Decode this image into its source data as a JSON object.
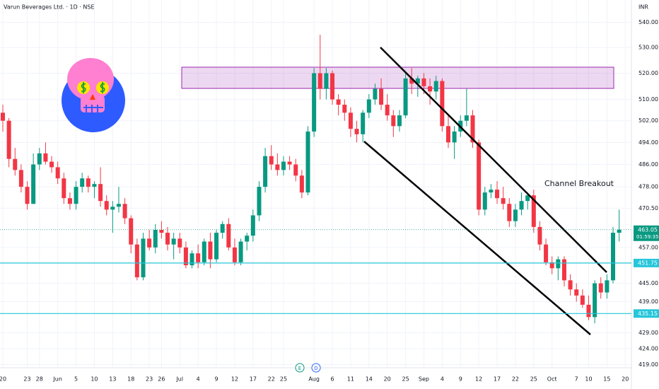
{
  "chart_data": {
    "type": "candlestick",
    "title": "Varun Beverages Ltd. · 1D · NSE",
    "currency": "INR",
    "annotation": "Channel Breakout",
    "events": [
      "E",
      "D"
    ],
    "up_color": "#089981",
    "down_color": "#f23645",
    "log_scale": true,
    "ylim": [
      418,
      549
    ],
    "yticks": [
      {
        "value": 540,
        "label": "540.00"
      },
      {
        "value": 530,
        "label": "530.00"
      },
      {
        "value": 520,
        "label": "520.00"
      },
      {
        "value": 510,
        "label": "510.00"
      },
      {
        "value": 502,
        "label": "502.00"
      },
      {
        "value": 494,
        "label": "494.00"
      },
      {
        "value": 486,
        "label": "486.00"
      },
      {
        "value": 478,
        "label": "478.00"
      },
      {
        "value": 470.5,
        "label": "470.50"
      },
      {
        "value": 457,
        "label": "457.00"
      },
      {
        "value": 445,
        "label": "445.00"
      },
      {
        "value": 439,
        "label": "439.00"
      },
      {
        "value": 429,
        "label": "429.00"
      },
      {
        "value": 424,
        "label": "424.00"
      },
      {
        "value": 419,
        "label": "419.00"
      }
    ],
    "xticks": [
      {
        "value": 0,
        "label": "20"
      },
      {
        "value": 4,
        "label": "23"
      },
      {
        "value": 6,
        "label": "28"
      },
      {
        "value": 9,
        "label": "Jun"
      },
      {
        "value": 12,
        "label": "5"
      },
      {
        "value": 15,
        "label": "10"
      },
      {
        "value": 18,
        "label": "13"
      },
      {
        "value": 21,
        "label": "18"
      },
      {
        "value": 24,
        "label": "23"
      },
      {
        "value": 26,
        "label": "26"
      },
      {
        "value": 29,
        "label": "Jul"
      },
      {
        "value": 32,
        "label": "4"
      },
      {
        "value": 35,
        "label": "9"
      },
      {
        "value": 38,
        "label": "12"
      },
      {
        "value": 41,
        "label": "17"
      },
      {
        "value": 44,
        "label": "22"
      },
      {
        "value": 46,
        "label": "25"
      },
      {
        "value": 51,
        "label": "Aug"
      },
      {
        "value": 54,
        "label": "6"
      },
      {
        "value": 57,
        "label": "11"
      },
      {
        "value": 60,
        "label": "14"
      },
      {
        "value": 63,
        "label": "20"
      },
      {
        "value": 66,
        "label": "25"
      },
      {
        "value": 69,
        "label": "Sep"
      },
      {
        "value": 72,
        "label": "4"
      },
      {
        "value": 75,
        "label": "9"
      },
      {
        "value": 78,
        "label": "12"
      },
      {
        "value": 81,
        "label": "17"
      },
      {
        "value": 84,
        "label": "22"
      },
      {
        "value": 87,
        "label": "25"
      },
      {
        "value": 90,
        "label": "Oct"
      },
      {
        "value": 94,
        "label": "7"
      },
      {
        "value": 96,
        "label": "10"
      },
      {
        "value": 99,
        "label": "15"
      },
      {
        "value": 102,
        "label": "20"
      }
    ],
    "last_price": {
      "value": 463.05,
      "label": "463.05",
      "countdown": "01:59:35"
    },
    "levels": [
      {
        "value": 451.75,
        "label": "451.75"
      },
      {
        "value": 435.15,
        "label": "435.15"
      }
    ],
    "ohlc": [
      [
        505,
        508,
        498,
        502
      ],
      [
        502,
        503,
        485,
        488
      ],
      [
        488,
        492,
        482,
        484
      ],
      [
        484,
        486,
        476,
        478
      ],
      [
        478,
        480,
        470,
        472
      ],
      [
        472,
        490,
        472,
        486
      ],
      [
        486,
        492,
        484,
        490
      ],
      [
        490,
        494,
        486,
        487
      ],
      [
        487,
        489,
        483,
        485
      ],
      [
        485,
        487,
        479,
        481
      ],
      [
        481,
        483,
        472,
        474
      ],
      [
        474,
        476,
        470,
        472
      ],
      [
        472,
        480,
        470,
        478
      ],
      [
        478,
        483,
        476,
        481
      ],
      [
        481,
        482,
        476,
        478
      ],
      [
        478,
        480,
        474,
        479
      ],
      [
        479,
        485,
        471,
        473
      ],
      [
        473,
        475,
        468,
        470
      ],
      [
        470,
        473,
        462,
        471
      ],
      [
        471,
        478,
        469,
        472
      ],
      [
        472,
        474,
        465,
        467
      ],
      [
        467,
        468,
        455,
        458
      ],
      [
        458,
        460,
        446,
        447
      ],
      [
        447,
        462,
        446,
        460
      ],
      [
        460,
        463,
        456,
        457
      ],
      [
        457,
        465,
        455,
        463
      ],
      [
        463,
        466,
        460,
        462
      ],
      [
        462,
        464,
        456,
        458
      ],
      [
        458,
        462,
        453,
        460
      ],
      [
        460,
        462,
        455,
        457
      ],
      [
        457,
        459,
        450,
        451
      ],
      [
        451,
        456,
        450,
        455
      ],
      [
        455,
        458,
        450,
        452
      ],
      [
        452,
        460,
        451,
        459
      ],
      [
        459,
        462,
        450,
        453
      ],
      [
        453,
        463,
        452,
        462
      ],
      [
        462,
        466,
        460,
        465
      ],
      [
        465,
        467,
        456,
        457
      ],
      [
        457,
        460,
        451,
        452
      ],
      [
        452,
        460,
        451,
        459
      ],
      [
        459,
        462,
        456,
        461
      ],
      [
        461,
        470,
        459,
        468
      ],
      [
        468,
        480,
        466,
        478
      ],
      [
        478,
        492,
        476,
        489
      ],
      [
        489,
        493,
        484,
        486
      ],
      [
        486,
        490,
        482,
        484
      ],
      [
        484,
        489,
        482,
        487
      ],
      [
        487,
        489,
        484,
        486
      ],
      [
        486,
        488,
        480,
        482
      ],
      [
        482,
        484,
        474,
        476
      ],
      [
        476,
        500,
        475,
        498
      ],
      [
        498,
        522,
        496,
        520
      ],
      [
        520,
        535,
        510,
        514
      ],
      [
        514,
        522,
        510,
        520
      ],
      [
        520,
        521,
        508,
        510
      ],
      [
        510,
        512,
        504,
        508
      ],
      [
        508,
        510,
        502,
        505
      ],
      [
        505,
        507,
        496,
        499
      ],
      [
        499,
        502,
        494,
        497
      ],
      [
        497,
        506,
        494,
        505
      ],
      [
        505,
        512,
        503,
        510
      ],
      [
        510,
        516,
        508,
        514
      ],
      [
        514,
        518,
        506,
        508
      ],
      [
        508,
        512,
        502,
        504
      ],
      [
        504,
        506,
        496,
        500
      ],
      [
        500,
        506,
        498,
        504
      ],
      [
        504,
        520,
        503,
        518
      ],
      [
        518,
        522,
        512,
        516
      ],
      [
        516,
        519,
        511,
        518
      ],
      [
        518,
        520,
        512,
        515
      ],
      [
        515,
        518,
        508,
        513
      ],
      [
        513,
        519,
        510,
        517
      ],
      [
        517,
        518,
        498,
        500
      ],
      [
        500,
        504,
        492,
        494
      ],
      [
        494,
        500,
        488,
        498
      ],
      [
        498,
        504,
        496,
        502
      ],
      [
        502,
        514,
        500,
        504
      ],
      [
        504,
        506,
        492,
        494
      ],
      [
        494,
        495,
        468,
        470
      ],
      [
        470,
        478,
        468,
        476
      ],
      [
        476,
        479,
        474,
        477
      ],
      [
        477,
        480,
        472,
        474
      ],
      [
        474,
        478,
        470,
        472
      ],
      [
        472,
        474,
        464,
        466
      ],
      [
        466,
        472,
        464,
        470
      ],
      [
        470,
        476,
        468,
        473
      ],
      [
        473,
        476,
        470,
        475
      ],
      [
        475,
        477,
        462,
        464
      ],
      [
        464,
        466,
        456,
        458
      ],
      [
        458,
        460,
        451,
        452
      ],
      [
        452,
        454,
        448,
        450
      ],
      [
        450,
        454,
        446,
        453
      ],
      [
        453,
        454,
        444,
        446
      ],
      [
        446,
        448,
        441,
        443
      ],
      [
        443,
        445,
        439,
        441
      ],
      [
        441,
        443,
        437,
        438
      ],
      [
        438,
        441,
        433,
        434
      ],
      [
        434,
        446,
        432,
        445
      ],
      [
        445,
        447,
        440,
        442
      ],
      [
        442,
        448,
        440,
        446
      ],
      [
        446,
        464,
        445,
        462
      ],
      [
        462,
        470,
        459,
        463.05
      ]
    ]
  }
}
